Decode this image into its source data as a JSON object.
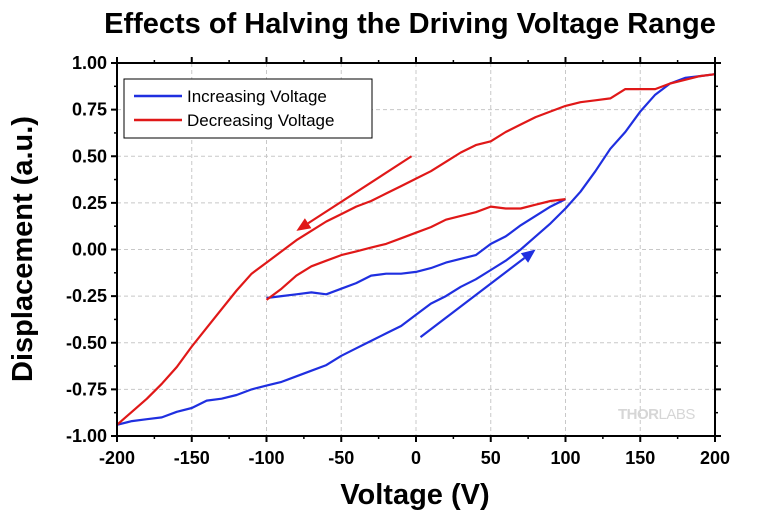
{
  "chart_data": {
    "type": "line",
    "title": "Effects of Halving the Driving Voltage Range",
    "xlabel": "Voltage (V)",
    "ylabel": "Displacement (a.u.)",
    "xlim": [
      -200,
      200
    ],
    "ylim": [
      -1.0,
      1.0
    ],
    "x_ticks": [
      -200,
      -150,
      -100,
      -50,
      0,
      50,
      100,
      150,
      200
    ],
    "x_tick_labels": [
      "-200",
      "-150",
      "-100",
      "-50",
      "0",
      "50",
      "100",
      "150",
      "200"
    ],
    "y_ticks": [
      1.0,
      0.75,
      0.5,
      0.25,
      0.0,
      -0.25,
      -0.5,
      -0.75,
      -1.0
    ],
    "y_tick_labels": [
      "1.00",
      "0.75",
      "0.50",
      "0.25",
      "0.00",
      "-0.25",
      "-0.50",
      "-0.75",
      "-1.00"
    ],
    "grid": true,
    "legend_position": "top-left",
    "series": [
      {
        "name": "Increasing Voltage",
        "color": "#1f2fe0",
        "segments": [
          [
            [
              -200,
              -0.94
            ],
            [
              -190,
              -0.92
            ],
            [
              -180,
              -0.91
            ],
            [
              -170,
              -0.9
            ],
            [
              -160,
              -0.87
            ],
            [
              -150,
              -0.85
            ],
            [
              -140,
              -0.81
            ],
            [
              -130,
              -0.8
            ],
            [
              -120,
              -0.78
            ],
            [
              -110,
              -0.75
            ],
            [
              -100,
              -0.73
            ],
            [
              -90,
              -0.71
            ],
            [
              -80,
              -0.68
            ],
            [
              -70,
              -0.65
            ],
            [
              -60,
              -0.62
            ],
            [
              -50,
              -0.57
            ],
            [
              -40,
              -0.53
            ],
            [
              -30,
              -0.49
            ],
            [
              -20,
              -0.45
            ],
            [
              -10,
              -0.41
            ],
            [
              0,
              -0.35
            ],
            [
              10,
              -0.29
            ],
            [
              20,
              -0.25
            ],
            [
              30,
              -0.2
            ],
            [
              40,
              -0.16
            ],
            [
              50,
              -0.11
            ],
            [
              60,
              -0.06
            ],
            [
              70,
              0.0
            ],
            [
              80,
              0.07
            ],
            [
              90,
              0.14
            ],
            [
              100,
              0.22
            ],
            [
              110,
              0.31
            ],
            [
              120,
              0.42
            ],
            [
              130,
              0.54
            ],
            [
              140,
              0.63
            ],
            [
              150,
              0.74
            ],
            [
              160,
              0.83
            ],
            [
              170,
              0.89
            ],
            [
              180,
              0.92
            ],
            [
              190,
              0.93
            ],
            [
              200,
              0.94
            ]
          ],
          [
            [
              -100,
              -0.26
            ],
            [
              -90,
              -0.25
            ],
            [
              -80,
              -0.24
            ],
            [
              -70,
              -0.23
            ],
            [
              -60,
              -0.24
            ],
            [
              -50,
              -0.21
            ],
            [
              -40,
              -0.18
            ],
            [
              -30,
              -0.14
            ],
            [
              -20,
              -0.13
            ],
            [
              -10,
              -0.13
            ],
            [
              0,
              -0.12
            ],
            [
              10,
              -0.1
            ],
            [
              20,
              -0.07
            ],
            [
              30,
              -0.05
            ],
            [
              40,
              -0.03
            ],
            [
              50,
              0.03
            ],
            [
              60,
              0.07
            ],
            [
              70,
              0.13
            ],
            [
              80,
              0.18
            ],
            [
              90,
              0.23
            ],
            [
              100,
              0.27
            ]
          ]
        ]
      },
      {
        "name": "Decreasing Voltage",
        "color": "#e01818",
        "segments": [
          [
            [
              200,
              0.94
            ],
            [
              190,
              0.93
            ],
            [
              180,
              0.91
            ],
            [
              170,
              0.89
            ],
            [
              160,
              0.86
            ],
            [
              150,
              0.86
            ],
            [
              140,
              0.86
            ],
            [
              130,
              0.81
            ],
            [
              120,
              0.8
            ],
            [
              110,
              0.79
            ],
            [
              100,
              0.77
            ],
            [
              90,
              0.74
            ],
            [
              80,
              0.71
            ],
            [
              70,
              0.67
            ],
            [
              60,
              0.63
            ],
            [
              50,
              0.58
            ],
            [
              40,
              0.56
            ],
            [
              30,
              0.52
            ],
            [
              20,
              0.47
            ],
            [
              10,
              0.42
            ],
            [
              0,
              0.38
            ],
            [
              -10,
              0.34
            ],
            [
              -20,
              0.3
            ],
            [
              -30,
              0.26
            ],
            [
              -40,
              0.23
            ],
            [
              -50,
              0.19
            ],
            [
              -60,
              0.15
            ],
            [
              -70,
              0.1
            ],
            [
              -80,
              0.05
            ],
            [
              -90,
              -0.01
            ],
            [
              -100,
              -0.07
            ],
            [
              -110,
              -0.13
            ],
            [
              -120,
              -0.22
            ],
            [
              -130,
              -0.32
            ],
            [
              -140,
              -0.42
            ],
            [
              -150,
              -0.52
            ],
            [
              -160,
              -0.63
            ],
            [
              -170,
              -0.72
            ],
            [
              -180,
              -0.8
            ],
            [
              -190,
              -0.87
            ],
            [
              -200,
              -0.94
            ]
          ],
          [
            [
              100,
              0.27
            ],
            [
              90,
              0.26
            ],
            [
              80,
              0.24
            ],
            [
              70,
              0.22
            ],
            [
              60,
              0.22
            ],
            [
              50,
              0.23
            ],
            [
              40,
              0.2
            ],
            [
              30,
              0.18
            ],
            [
              20,
              0.16
            ],
            [
              10,
              0.12
            ],
            [
              0,
              0.09
            ],
            [
              -10,
              0.06
            ],
            [
              -20,
              0.03
            ],
            [
              -30,
              0.01
            ],
            [
              -40,
              -0.01
            ],
            [
              -50,
              -0.03
            ],
            [
              -60,
              -0.06
            ],
            [
              -70,
              -0.09
            ],
            [
              -80,
              -0.14
            ],
            [
              -90,
              -0.21
            ],
            [
              -100,
              -0.27
            ]
          ]
        ]
      }
    ],
    "annotations": [
      {
        "type": "arrow",
        "color": "#e01818",
        "from": [
          -3,
          0.5
        ],
        "to": [
          -80,
          0.1
        ]
      },
      {
        "type": "arrow",
        "color": "#1f2fe0",
        "from": [
          3,
          -0.47
        ],
        "to": [
          80,
          0.0
        ]
      }
    ]
  },
  "watermark": {
    "part1": "THOR",
    "part2": "LABS"
  }
}
